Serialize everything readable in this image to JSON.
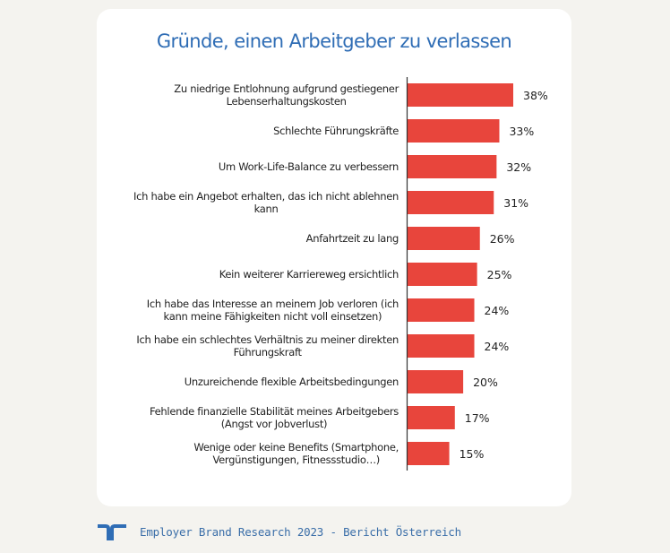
{
  "footer": {
    "logo": "randstad-logo-icon",
    "text": "Employer Brand Research 2023 - Bericht Österreich"
  },
  "colors": {
    "bar": "#e8453c",
    "title": "#2f6db5",
    "footer_text": "#3a6ea8",
    "background": "#f4f3ef"
  },
  "chart_data": {
    "type": "bar",
    "orientation": "horizontal",
    "title": "Gründe, einen Arbeitgeber zu verlassen",
    "xlabel": "",
    "ylabel": "",
    "xlim": [
      0,
      40
    ],
    "grid": false,
    "legend": "none",
    "value_suffix": "%",
    "categories": [
      [
        "Zu niedrige Entlohnung aufgrund gestiegener",
        "Lebenserhaltungskosten"
      ],
      [
        "Schlechte Führungskräfte"
      ],
      [
        "Um Work-Life-Balance zu verbessern"
      ],
      [
        "Ich habe ein Angebot erhalten, das ich nicht ablehnen",
        "kann"
      ],
      [
        "Anfahrtzeit zu lang"
      ],
      [
        "Kein weiterer Karriereweg ersichtlich"
      ],
      [
        "Ich habe das Interesse an meinem Job verloren (ich",
        "kann meine Fähigkeiten nicht voll einsetzen)"
      ],
      [
        "Ich habe ein schlechtes Verhältnis zu meiner direkten",
        "Führungskraft"
      ],
      [
        "Unzureichende flexible Arbeitsbedingungen"
      ],
      [
        "Fehlende finanzielle Stabilität meines Arbeitgebers",
        "(Angst vor Jobverlust)"
      ],
      [
        "Wenige oder keine Benefits (Smartphone,",
        "Vergünstigungen, Fitnessstudio…)"
      ]
    ],
    "values": [
      38,
      33,
      32,
      31,
      26,
      25,
      24,
      24,
      20,
      17,
      15
    ],
    "labels": [
      "38%",
      "33%",
      "32%",
      "31%",
      "26%",
      "25%",
      "24%",
      "24%",
      "20%",
      "17%",
      "15%"
    ]
  }
}
